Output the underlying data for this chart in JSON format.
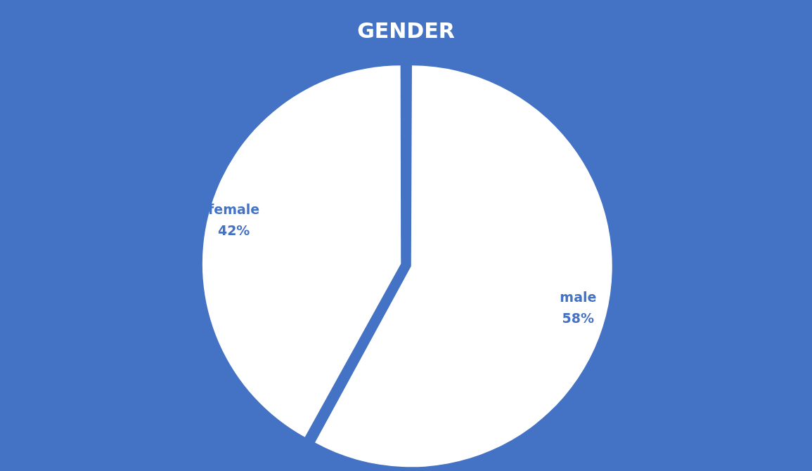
{
  "chart_data": {
    "type": "pie",
    "title": "GENDER",
    "categories": [
      "male",
      "female"
    ],
    "values": [
      58,
      42
    ],
    "colors": [
      "#ffffff",
      "#ffffff"
    ],
    "value_labels": [
      "58%",
      "42%"
    ],
    "legend": false
  }
}
